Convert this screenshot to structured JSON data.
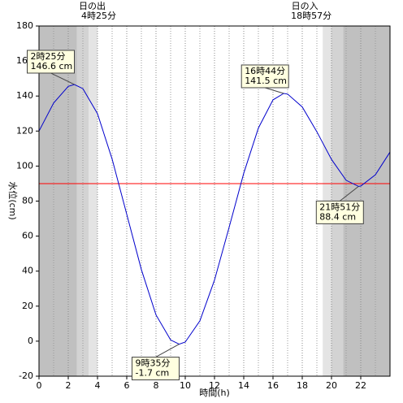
{
  "chart_data": {
    "type": "line",
    "x": [
      0,
      1,
      2,
      2.4167,
      3,
      4,
      5,
      6,
      7,
      8,
      9,
      9.5833,
      10,
      11,
      12,
      13,
      14,
      15,
      16,
      16.7333,
      17,
      18,
      19,
      20,
      21,
      21.85,
      22,
      23,
      24
    ],
    "values": [
      120,
      136,
      145.5,
      146.6,
      144.2,
      129.9,
      104,
      72.5,
      40.9,
      15,
      0.7,
      -1.7,
      -0.5,
      11.6,
      34.9,
      65,
      95.9,
      121.7,
      137.8,
      141.5,
      141.1,
      133.8,
      119.6,
      103.8,
      91.9,
      88.4,
      88.6,
      95,
      108
    ],
    "color": "#0000cc",
    "xlim": [
      0,
      24
    ],
    "xticks": [
      0,
      2,
      4,
      6,
      8,
      10,
      12,
      14,
      16,
      18,
      20,
      22
    ],
    "minor_xticks": [
      1,
      3,
      5,
      7,
      9,
      11,
      13,
      15,
      17,
      19,
      21,
      23
    ],
    "ylim": [
      -20,
      180
    ],
    "yticks": [
      -20,
      0,
      20,
      40,
      60,
      80,
      100,
      120,
      140,
      160,
      180
    ],
    "xlabel": "時間(h)",
    "ylabel": "水位(cm)",
    "hline": {
      "value": 90,
      "color": "#ff0000"
    },
    "bands": [
      {
        "start": 0,
        "end": 2.6,
        "color": "#c0c0c0"
      },
      {
        "start": 2.6,
        "end": 3.4,
        "color": "#d3d3d3"
      },
      {
        "start": 3.4,
        "end": 4,
        "color": "#e4e4e4"
      },
      {
        "start": 19.4,
        "end": 20,
        "color": "#e4e4e4"
      },
      {
        "start": 20,
        "end": 20.8,
        "color": "#d3d3d3"
      },
      {
        "start": 20.8,
        "end": 24,
        "color": "#c0c0c0"
      }
    ],
    "sun": [
      {
        "label": "日の出",
        "time": "4時25分",
        "x": 4.4167
      },
      {
        "label": "日の入",
        "time": "18時57分",
        "x": 18.95
      }
    ],
    "annotations": [
      {
        "time": "2時25分",
        "label": "146.6 cm",
        "x": 2.4167,
        "value": 146.6
      },
      {
        "time": "16時44分",
        "label": "141.5 cm",
        "x": 16.7333,
        "value": 141.5
      },
      {
        "time": "9時35分",
        "label": "-1.7 cm",
        "x": 9.5833,
        "value": -1.7
      },
      {
        "time": "21時51分",
        "label": "88.4 cm",
        "x": 21.85,
        "value": 88.4
      }
    ]
  }
}
